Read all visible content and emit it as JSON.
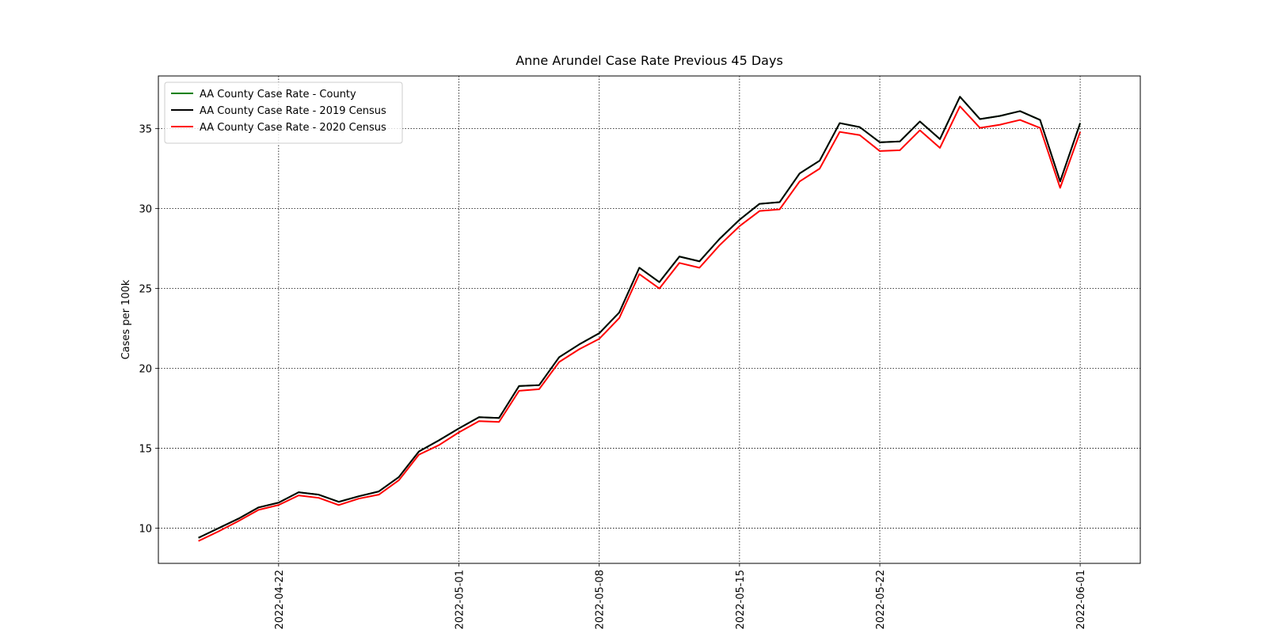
{
  "chart_data": {
    "type": "line",
    "title": "Anne Arundel Case Rate Previous 45 Days",
    "ylabel": "Cases per 100k",
    "x": [
      "2022-04-18",
      "2022-04-19",
      "2022-04-20",
      "2022-04-21",
      "2022-04-22",
      "2022-04-23",
      "2022-04-24",
      "2022-04-25",
      "2022-04-26",
      "2022-04-27",
      "2022-04-28",
      "2022-04-29",
      "2022-04-30",
      "2022-05-01",
      "2022-05-02",
      "2022-05-03",
      "2022-05-04",
      "2022-05-05",
      "2022-05-06",
      "2022-05-07",
      "2022-05-08",
      "2022-05-09",
      "2022-05-10",
      "2022-05-11",
      "2022-05-12",
      "2022-05-13",
      "2022-05-14",
      "2022-05-15",
      "2022-05-16",
      "2022-05-17",
      "2022-05-18",
      "2022-05-19",
      "2022-05-20",
      "2022-05-21",
      "2022-05-22",
      "2022-05-23",
      "2022-05-24",
      "2022-05-25",
      "2022-05-26",
      "2022-05-27",
      "2022-05-28",
      "2022-05-29",
      "2022-05-30",
      "2022-05-31",
      "2022-06-01"
    ],
    "series": [
      {
        "name": "AA County Case Rate - County",
        "color": "#008000",
        "values": [
          9.4,
          10.0,
          10.6,
          11.3,
          11.6,
          12.25,
          12.1,
          11.65,
          12.0,
          12.3,
          13.2,
          14.8,
          15.5,
          16.25,
          16.95,
          16.9,
          18.9,
          18.95,
          20.7,
          21.5,
          22.2,
          23.5,
          26.3,
          25.4,
          27.0,
          26.7,
          28.1,
          29.3,
          30.3,
          30.4,
          32.2,
          33.0,
          35.35,
          35.1,
          34.15,
          34.2,
          35.45,
          34.35,
          37.0,
          35.6,
          35.8,
          36.1,
          35.55,
          31.7,
          35.35
        ]
      },
      {
        "name": "AA County Case Rate - 2019 Census",
        "color": "#000000",
        "values": [
          9.4,
          10.0,
          10.6,
          11.3,
          11.6,
          12.25,
          12.1,
          11.65,
          12.0,
          12.3,
          13.2,
          14.8,
          15.5,
          16.25,
          16.95,
          16.9,
          18.9,
          18.95,
          20.7,
          21.5,
          22.2,
          23.5,
          26.3,
          25.4,
          27.0,
          26.7,
          28.1,
          29.3,
          30.3,
          30.4,
          32.2,
          33.0,
          35.35,
          35.1,
          34.15,
          34.2,
          35.45,
          34.35,
          37.0,
          35.6,
          35.8,
          36.1,
          35.55,
          31.7,
          35.35
        ]
      },
      {
        "name": "AA County Case Rate - 2020 Census",
        "color": "#ff0000",
        "values": [
          9.2,
          9.8,
          10.45,
          11.15,
          11.45,
          12.05,
          11.9,
          11.45,
          11.85,
          12.1,
          13.0,
          14.6,
          15.2,
          16.0,
          16.7,
          16.65,
          18.6,
          18.7,
          20.4,
          21.2,
          21.85,
          23.15,
          25.9,
          25.0,
          26.6,
          26.3,
          27.7,
          28.9,
          29.85,
          29.95,
          31.7,
          32.5,
          34.8,
          34.6,
          33.6,
          33.65,
          34.9,
          33.8,
          36.4,
          35.05,
          35.25,
          35.55,
          35.05,
          31.3,
          34.8
        ]
      }
    ],
    "xlim": [
      "2022-04-16",
      "2022-06-04"
    ],
    "xticks": [
      "2022-04-22",
      "2022-05-01",
      "2022-05-08",
      "2022-05-15",
      "2022-05-22",
      "2022-06-01"
    ],
    "ylim": [
      7.8,
      38.3
    ],
    "yticks": [
      10,
      15,
      20,
      25,
      30,
      35
    ],
    "grid": true,
    "legend": "upper left"
  }
}
